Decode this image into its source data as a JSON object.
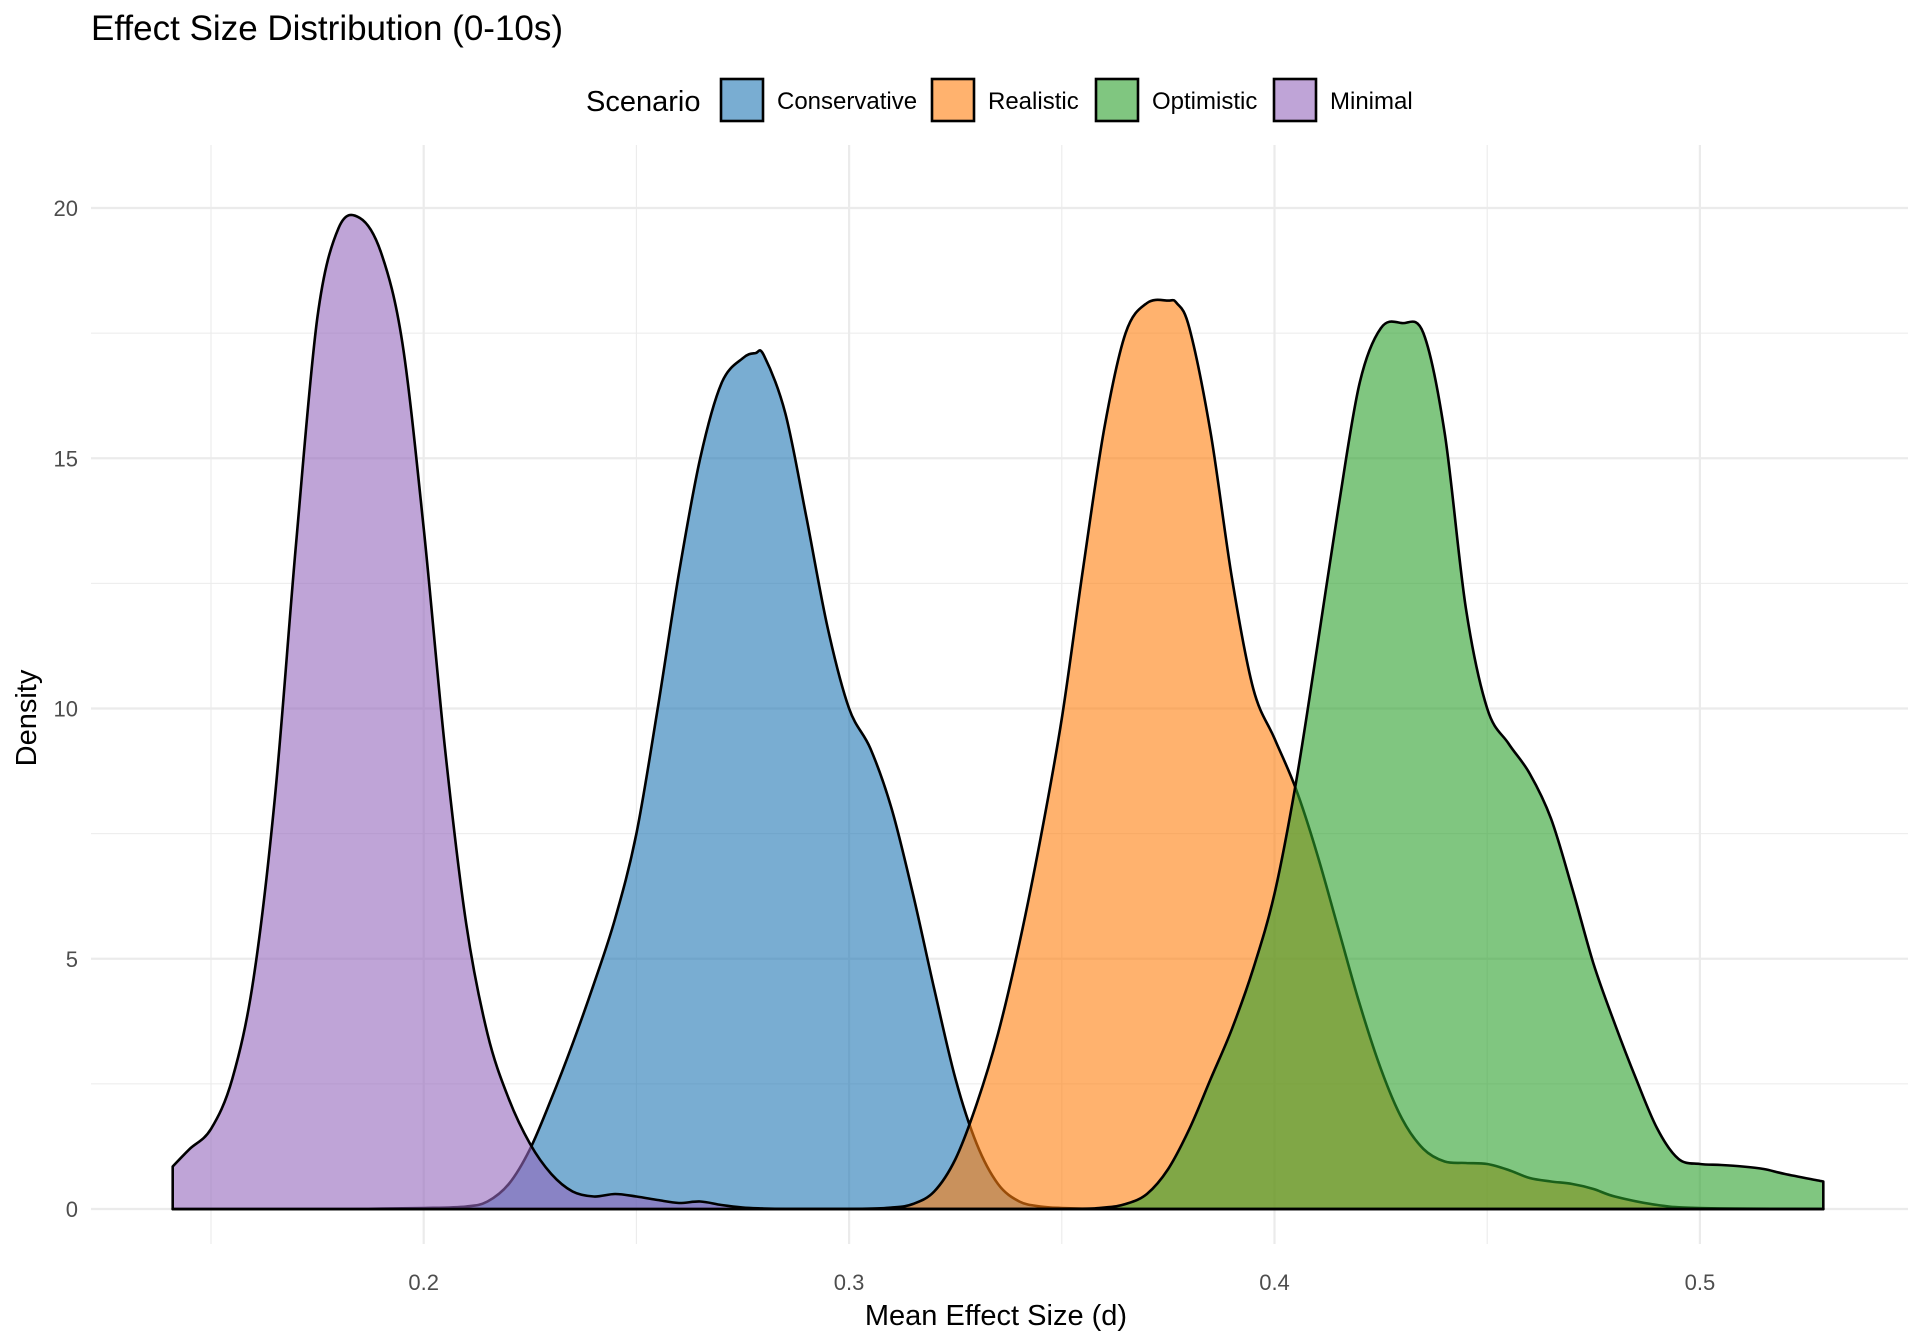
{
  "chart_data": {
    "type": "area",
    "subtype": "density",
    "title": "Effect Size Distribution (0-10s)",
    "xlabel": "Mean Effect Size (d)",
    "ylabel": "Density",
    "xlim": [
      0.141,
      0.529
    ],
    "ylim": [
      0,
      20
    ],
    "x_ticks": [
      0.2,
      0.3,
      0.4,
      0.5
    ],
    "x_tick_labels": [
      "0.2",
      "0.3",
      "0.4",
      "0.5"
    ],
    "y_ticks": [
      0,
      5,
      10,
      15,
      20
    ],
    "y_tick_labels": [
      "0",
      "5",
      "10",
      "15",
      "20"
    ],
    "grid": true,
    "legend": {
      "title": "Scenario",
      "position": "top",
      "entries": [
        "Conservative",
        "Realistic",
        "Optimistic",
        "Minimal"
      ]
    },
    "series": [
      {
        "name": "Conservative",
        "color": "#1f77b4",
        "x": [
          0.141,
          0.16,
          0.18,
          0.2,
          0.21,
          0.215,
          0.22,
          0.225,
          0.23,
          0.235,
          0.24,
          0.245,
          0.25,
          0.255,
          0.26,
          0.265,
          0.27,
          0.275,
          0.278,
          0.28,
          0.285,
          0.29,
          0.295,
          0.3,
          0.305,
          0.31,
          0.315,
          0.32,
          0.325,
          0.33,
          0.335,
          0.34,
          0.345,
          0.35,
          0.36,
          0.38,
          0.4,
          0.45,
          0.5,
          0.529
        ],
        "y": [
          0,
          0,
          0,
          0.02,
          0.05,
          0.15,
          0.5,
          1.2,
          2.2,
          3.3,
          4.5,
          5.8,
          7.5,
          10.0,
          12.7,
          15.0,
          16.5,
          17.0,
          17.1,
          17.05,
          15.9,
          13.8,
          11.6,
          10.0,
          9.2,
          8.0,
          6.3,
          4.4,
          2.6,
          1.3,
          0.5,
          0.15,
          0.05,
          0.02,
          0,
          0,
          0,
          0,
          0,
          0
        ]
      },
      {
        "name": "Realistic",
        "color": "#ff7f0e",
        "x": [
          0.141,
          0.2,
          0.26,
          0.3,
          0.31,
          0.315,
          0.32,
          0.325,
          0.33,
          0.335,
          0.34,
          0.345,
          0.35,
          0.355,
          0.36,
          0.365,
          0.37,
          0.375,
          0.377,
          0.38,
          0.385,
          0.39,
          0.395,
          0.4,
          0.405,
          0.41,
          0.415,
          0.42,
          0.425,
          0.43,
          0.435,
          0.44,
          0.445,
          0.45,
          0.455,
          0.46,
          0.465,
          0.47,
          0.475,
          0.48,
          0.49,
          0.5,
          0.529
        ],
        "y": [
          0,
          0,
          0,
          0,
          0.03,
          0.1,
          0.35,
          1.0,
          2.1,
          3.5,
          5.3,
          7.4,
          9.8,
          12.8,
          15.6,
          17.5,
          18.1,
          18.15,
          18.1,
          17.6,
          15.5,
          12.6,
          10.4,
          9.4,
          8.4,
          7.1,
          5.6,
          4.1,
          2.8,
          1.8,
          1.2,
          0.95,
          0.92,
          0.9,
          0.78,
          0.62,
          0.55,
          0.5,
          0.4,
          0.25,
          0.08,
          0.02,
          0
        ]
      },
      {
        "name": "Optimistic",
        "color": "#2ca02c",
        "x": [
          0.141,
          0.2,
          0.3,
          0.35,
          0.36,
          0.365,
          0.37,
          0.375,
          0.38,
          0.385,
          0.39,
          0.395,
          0.4,
          0.405,
          0.41,
          0.415,
          0.42,
          0.425,
          0.43,
          0.435,
          0.44,
          0.445,
          0.45,
          0.455,
          0.46,
          0.465,
          0.47,
          0.475,
          0.48,
          0.485,
          0.49,
          0.495,
          0.5,
          0.505,
          0.51,
          0.515,
          0.52,
          0.529
        ],
        "y": [
          0,
          0,
          0,
          0,
          0.03,
          0.1,
          0.3,
          0.8,
          1.6,
          2.6,
          3.6,
          4.8,
          6.3,
          8.5,
          11.2,
          14.0,
          16.5,
          17.6,
          17.7,
          17.5,
          15.5,
          12.0,
          10.0,
          9.3,
          8.7,
          7.8,
          6.4,
          4.9,
          3.7,
          2.6,
          1.6,
          1.0,
          0.9,
          0.88,
          0.85,
          0.8,
          0.7,
          0.55
        ]
      },
      {
        "name": "Minimal",
        "color": "#9467bd",
        "x": [
          0.141,
          0.145,
          0.15,
          0.155,
          0.16,
          0.165,
          0.17,
          0.175,
          0.18,
          0.185,
          0.19,
          0.195,
          0.2,
          0.205,
          0.21,
          0.215,
          0.22,
          0.225,
          0.23,
          0.235,
          0.24,
          0.245,
          0.25,
          0.255,
          0.26,
          0.265,
          0.27,
          0.275,
          0.28,
          0.285,
          0.29,
          0.3,
          0.32,
          0.35,
          0.4,
          0.45,
          0.5,
          0.529
        ],
        "y": [
          0.85,
          1.2,
          1.6,
          2.6,
          4.6,
          8.2,
          13.3,
          17.8,
          19.6,
          19.8,
          19.1,
          17.3,
          13.6,
          9.2,
          5.7,
          3.5,
          2.2,
          1.3,
          0.7,
          0.35,
          0.25,
          0.3,
          0.25,
          0.18,
          0.12,
          0.15,
          0.08,
          0.03,
          0.01,
          0,
          0,
          0,
          0,
          0,
          0,
          0,
          0,
          0
        ]
      }
    ]
  }
}
